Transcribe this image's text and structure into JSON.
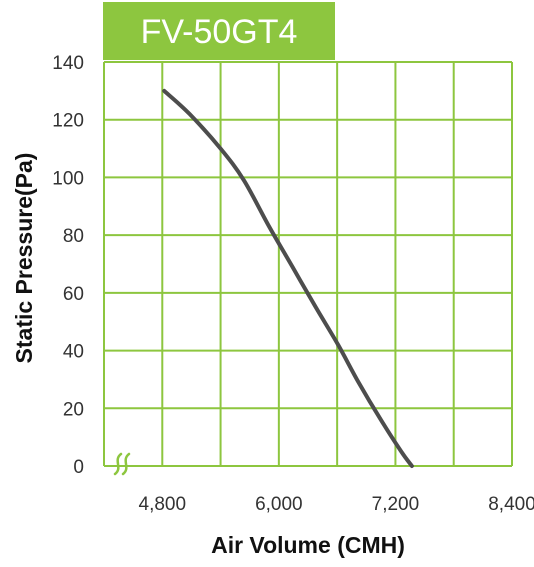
{
  "chart_data": {
    "type": "line",
    "title": "FV-50GT4",
    "xlabel": "Air Volume (CMH)",
    "ylabel": "Static Pressure(Pa)",
    "xlim": [
      4200,
      8400
    ],
    "ylim": [
      0,
      140
    ],
    "x_ticks": [
      4800,
      6000,
      7200,
      8400
    ],
    "x_tick_labels": [
      "4,800",
      "6,000",
      "7,200",
      "8,400"
    ],
    "y_ticks": [
      0,
      20,
      40,
      60,
      80,
      100,
      120,
      140
    ],
    "y_tick_labels": [
      "0",
      "20",
      "40",
      "60",
      "80",
      "100",
      "120",
      "140"
    ],
    "axis_break": "x",
    "grid": true,
    "series": [
      {
        "x": [
          4820,
          5080,
          5400,
          5640,
          5900,
          6140,
          6380,
          6610,
          6820,
          7050,
          7260,
          7370
        ],
        "y": [
          130,
          122,
          110,
          99,
          83,
          69,
          55,
          42,
          29,
          16,
          5,
          0
        ]
      }
    ],
    "colors": {
      "title_bg": "#8dc63f",
      "grid": "#8dc63f",
      "curve": "#4d4d4d",
      "axis_break": "#8dc63f"
    }
  }
}
